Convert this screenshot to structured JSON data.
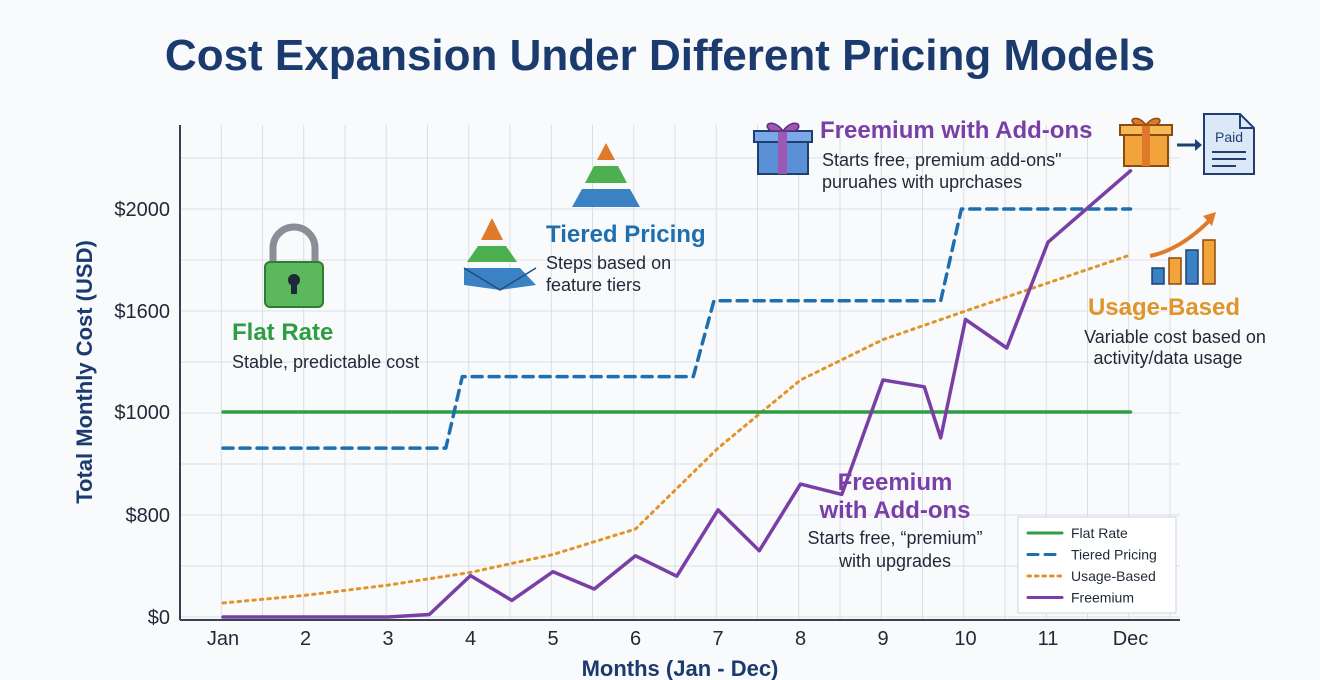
{
  "chart_data": {
    "type": "line",
    "title": "Cost Expansion Under Different Pricing Models",
    "xlabel": "Months (Jan - Dec)",
    "ylabel": "Total Monthly Cost (USD)",
    "categories": [
      "Jan",
      "2",
      "3",
      "4",
      "5",
      "6",
      "7",
      "8",
      "9",
      "10",
      "11",
      "Dec"
    ],
    "y_ticks": [
      {
        "value": 0,
        "label": "$0"
      },
      {
        "value": 800,
        "label": "$800"
      },
      {
        "value": 1000,
        "label": "$1000"
      },
      {
        "value": 1600,
        "label": "$1600"
      },
      {
        "value": 2000,
        "label": "$2000"
      }
    ],
    "grid": true,
    "legend_position": "bottom-right",
    "series": [
      {
        "name": "Flat Rate",
        "style": "solid",
        "color": "#2e9e44",
        "points": [
          [
            1,
            1000
          ],
          [
            12,
            1000
          ]
        ]
      },
      {
        "name": "Tiered Pricing",
        "style": "dashed",
        "color": "#1f6fae",
        "points": [
          [
            1,
            930
          ],
          [
            3.7,
            930
          ],
          [
            3.9,
            1210
          ],
          [
            6.7,
            1210
          ],
          [
            6.95,
            1640
          ],
          [
            9.7,
            1640
          ],
          [
            9.95,
            2000
          ],
          [
            12,
            2000
          ]
        ]
      },
      {
        "name": "Usage-Based",
        "style": "dotted",
        "color": "#e0952b",
        "points": [
          [
            1,
            110
          ],
          [
            2,
            170
          ],
          [
            3,
            250
          ],
          [
            4,
            350
          ],
          [
            5,
            490
          ],
          [
            6,
            690
          ],
          [
            7,
            930
          ],
          [
            8,
            1190
          ],
          [
            9,
            1430
          ],
          [
            10,
            1600
          ],
          [
            11,
            1710
          ],
          [
            12,
            1820
          ]
        ]
      },
      {
        "name": "Freemium",
        "style": "solid",
        "color": "#7a3fa6",
        "points": [
          [
            1,
            0
          ],
          [
            2,
            0
          ],
          [
            3,
            0
          ],
          [
            3.5,
            20
          ],
          [
            4,
            325
          ],
          [
            4.5,
            130
          ],
          [
            5,
            355
          ],
          [
            5.5,
            220
          ],
          [
            6,
            480
          ],
          [
            6.5,
            320
          ],
          [
            7,
            810
          ],
          [
            7.5,
            520
          ],
          [
            8,
            860
          ],
          [
            8.5,
            840
          ],
          [
            9,
            1190
          ],
          [
            9.5,
            1150
          ],
          [
            9.7,
            950
          ],
          [
            10,
            1550
          ],
          [
            10.5,
            1380
          ],
          [
            11,
            1870
          ],
          [
            12,
            2150
          ]
        ]
      }
    ],
    "annotations": [
      {
        "key": "flat",
        "title": "Flat Rate",
        "lines": [
          "Stable, predictable cost"
        ],
        "color": "#2e9e44"
      },
      {
        "key": "tiered",
        "title": "Tiered Pricing",
        "lines": [
          "Steps based on",
          "feature tiers"
        ],
        "color": "#1f6fae"
      },
      {
        "key": "freemium_top",
        "title": "Freemium with Add-ons",
        "lines": [
          "Starts free, premium add-onsʺ",
          "puruahes with uprchases"
        ],
        "color": "#7a3fa6"
      },
      {
        "key": "usage",
        "title": "Usage-Based",
        "lines": [
          "Variable cost based on",
          "activity/data usage"
        ],
        "color": "#e0952b"
      },
      {
        "key": "freemium_mid",
        "title_lines": [
          "Freemium",
          "with Add-ons"
        ],
        "lines": [
          "Starts free, “premium”",
          "with upgrades"
        ],
        "color": "#7a3fa6"
      }
    ],
    "invoice_label": "Paid",
    "legend": [
      {
        "label": "Flat Rate",
        "style": "solid",
        "color": "#2e9e44"
      },
      {
        "label": "Tiered Pricing",
        "style": "dashed",
        "color": "#1f6fae"
      },
      {
        "label": "Usage-Based",
        "style": "dotted",
        "color": "#e0952b"
      },
      {
        "label": "Freemium",
        "style": "solid",
        "color": "#7a3fa6"
      }
    ]
  }
}
